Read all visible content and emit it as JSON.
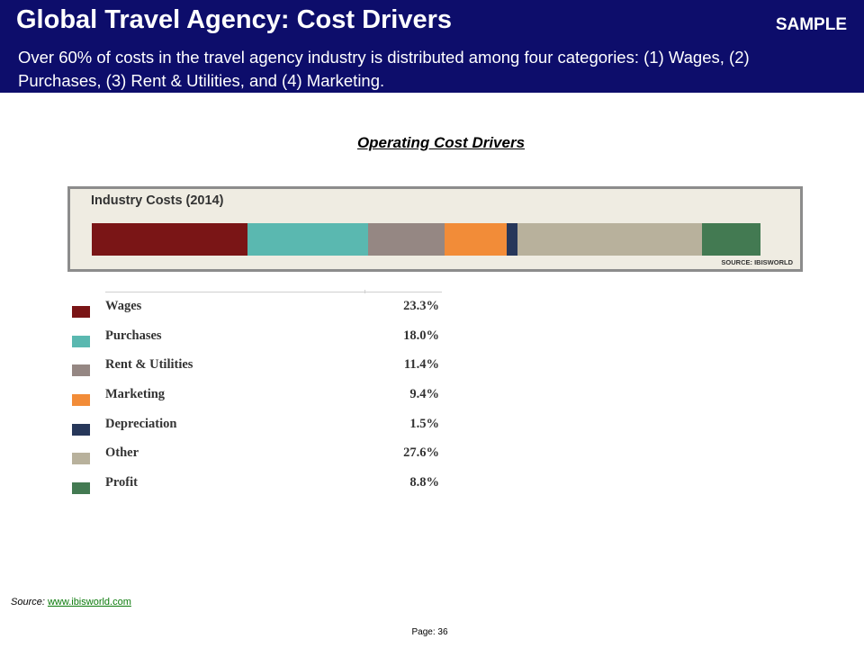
{
  "header": {
    "title": "Global Travel Agency:  Cost Drivers",
    "sample_label": "SAMPLE",
    "subtitle": "Over 60% of costs in the travel agency industry is distributed among four categories:  (1) Wages, (2) Purchases, (3) Rent & Utilities, and (4) Marketing."
  },
  "section_title": "Operating Cost Drivers",
  "chart_data": {
    "type": "bar",
    "orientation": "horizontal-stacked",
    "title": "Industry Costs (2014)",
    "source": "SOURCE: IBISWORLD",
    "unit": "%",
    "categories": [
      "Wages",
      "Purchases",
      "Rent & Utilities",
      "Marketing",
      "Depreciation",
      "Other",
      "Profit"
    ],
    "values": [
      23.3,
      18.0,
      11.4,
      9.4,
      1.5,
      27.6,
      8.8
    ],
    "value_labels": [
      "23.3%",
      "18.0%",
      "11.4%",
      "9.4%",
      "1.5%",
      "27.6%",
      "8.8%"
    ],
    "colors": [
      "#7a1516",
      "#5ab8b0",
      "#958783",
      "#f28c38",
      "#27375a",
      "#b8b19c",
      "#437a52"
    ],
    "legend_placement": "below-left"
  },
  "footer": {
    "source_prefix": "Source: ",
    "source_link": "www.ibisworld.com",
    "page_label": "Page: 36"
  }
}
